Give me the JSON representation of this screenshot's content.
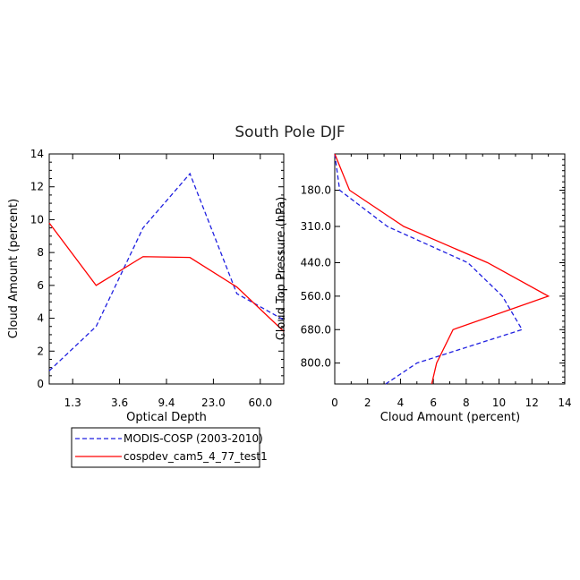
{
  "title": "South Pole DJF",
  "chart_data": [
    {
      "type": "line",
      "xlabel": "Optical Depth",
      "ylabel": "Cloud Amount (percent)",
      "ylim": [
        0,
        14
      ],
      "yticks": [
        0,
        2,
        4,
        6,
        8,
        10,
        12,
        14
      ],
      "xtick_labels": [
        "1.3",
        "3.6",
        "9.4",
        "23.0",
        "60.0"
      ],
      "x": [
        0,
        1,
        2,
        3,
        4,
        5
      ],
      "xlim": [
        0,
        5
      ],
      "xtick_positions": [
        0.5,
        1.5,
        2.5,
        3.5,
        4.5
      ],
      "series": [
        {
          "name": "MODIS-COSP (2003-2010)",
          "values": [
            0.8,
            3.5,
            9.5,
            12.8,
            5.5,
            3.9
          ],
          "color": "#1f1fe0",
          "dash": true
        },
        {
          "name": "cospdev_cam5_4_77_test1",
          "values": [
            9.8,
            6.0,
            7.75,
            7.7,
            5.9,
            3.2
          ],
          "color": "#ff0000",
          "dash": false
        }
      ]
    },
    {
      "type": "line",
      "xlabel": "Cloud Amount (percent)",
      "ylabel": "Cloud Top Pressure (hPa)",
      "xlim": [
        0,
        14
      ],
      "xticks": [
        0,
        2,
        4,
        6,
        8,
        10,
        12,
        14
      ],
      "ylim": [
        50,
        875
      ],
      "ytick_values": [
        180,
        310,
        440,
        560,
        680,
        800
      ],
      "ytick_labels": [
        "180.0",
        "310.0",
        "440.0",
        "560.0",
        "680.0",
        "800.0"
      ],
      "pressure": [
        50,
        180,
        310,
        440,
        560,
        680,
        800,
        875
      ],
      "series": [
        {
          "name": "MODIS-COSP (2003-2010)",
          "values": [
            0.0,
            0.3,
            3.2,
            8.1,
            10.2,
            11.4,
            5.0,
            3.1
          ],
          "color": "#1f1fe0",
          "dash": true
        },
        {
          "name": "cospdev_cam5_4_77_test1",
          "values": [
            0.0,
            0.9,
            4.2,
            9.3,
            13.0,
            7.2,
            6.2,
            5.9
          ],
          "color": "#ff0000",
          "dash": false
        }
      ]
    }
  ],
  "legend": [
    {
      "label": "MODIS-COSP (2003-2010)",
      "color": "#1f1fe0",
      "dash": true
    },
    {
      "label": "cospdev_cam5_4_77_test1",
      "color": "#ff0000",
      "dash": false
    }
  ]
}
